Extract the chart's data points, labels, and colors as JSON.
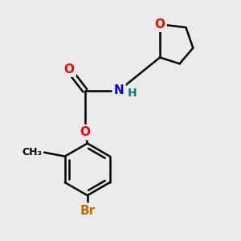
{
  "background_color": "#ebebeb",
  "atom_colors": {
    "O": "#ff0000",
    "N": "#0000ff",
    "Br": "#cc6600",
    "H_on_N": "#008080",
    "C": "#000000"
  },
  "bond_color": "#000000",
  "bond_width": 1.8
}
